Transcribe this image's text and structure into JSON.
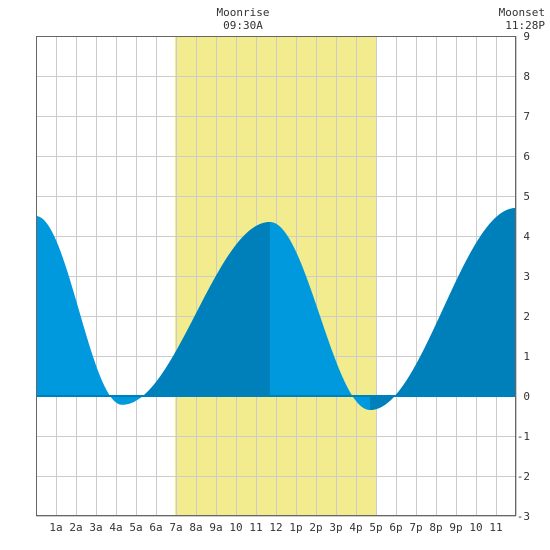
{
  "chart_data": {
    "type": "area",
    "colors": {
      "daylight": "#f2ec8e",
      "tide_light": "#0099dd",
      "tide_dark": "#0080bb",
      "grid": "#cccccc",
      "frame": "#666666"
    },
    "moon": {
      "rise_title": "Moonrise",
      "rise_time": "09:30A",
      "set_title": "Moonset",
      "set_time": "11:28P"
    },
    "x_tick_labels": [
      "1a",
      "2a",
      "3a",
      "4a",
      "5a",
      "6a",
      "7a",
      "8a",
      "9a",
      "10",
      "11",
      "12",
      "1p",
      "2p",
      "3p",
      "4p",
      "5p",
      "6p",
      "7p",
      "8p",
      "9p",
      "10",
      "11"
    ],
    "y_tick_labels": [
      "9",
      "8",
      "7",
      "6",
      "5",
      "4",
      "3",
      "2",
      "1",
      "0",
      "-1",
      "-2",
      "-3"
    ],
    "xlim_hours": [
      0,
      24
    ],
    "ylim": [
      -3,
      9
    ],
    "daylight_hours": [
      6.95,
      17.0
    ],
    "tide_events_hours": [
      {
        "x": 0.0,
        "y": 4.5
      },
      {
        "x": 4.3,
        "y": -0.22
      },
      {
        "x": 11.7,
        "y": 4.35
      },
      {
        "x": 16.7,
        "y": -0.35
      },
      {
        "x": 24.0,
        "y": 4.7
      }
    ],
    "tide_shading_dark_hours": [
      [
        5.4,
        11.7
      ],
      [
        16.7,
        24.0
      ]
    ]
  }
}
